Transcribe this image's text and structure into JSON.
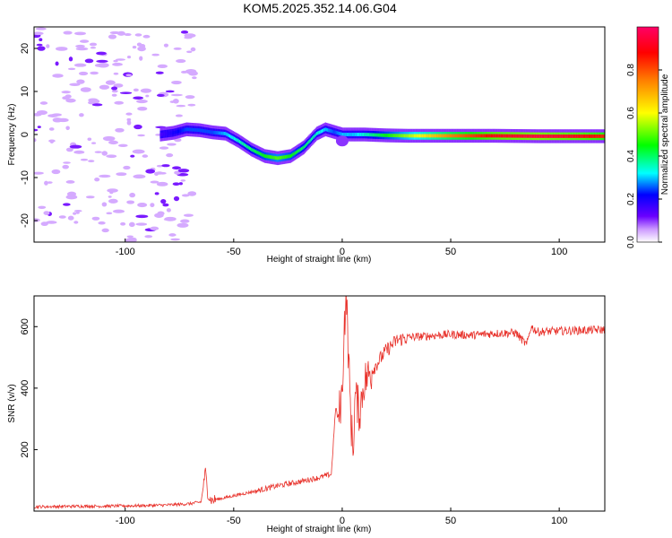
{
  "title": "KOM5.2025.352.14.06.G04",
  "chart_data": [
    {
      "type": "heatmap",
      "title": "KOM5.2025.352.14.06.G04",
      "xlabel": "Height of straight line (km)",
      "ylabel": "Frequency (Hz)",
      "xlim": [
        -142,
        121
      ],
      "ylim": [
        -25,
        25
      ],
      "xticks": [
        -100,
        -50,
        0,
        50,
        100
      ],
      "xtick_labels": [
        "-100",
        "-50",
        "0",
        "50",
        "100"
      ],
      "yticks": [
        20,
        10,
        0,
        -10,
        -20
      ],
      "ytick_labels": [
        "20",
        "10",
        "0",
        "-10",
        "-20"
      ],
      "colorbar": {
        "label": "Normalized spectral amplitude",
        "range": [
          0,
          1
        ],
        "ticks": [
          0.0,
          0.2,
          0.4,
          0.6,
          0.8
        ],
        "tick_labels": [
          "0.0",
          "0.2",
          "0.4",
          "0.6",
          "0.8"
        ]
      },
      "ridge": {
        "x": [
          -84,
          -78,
          -72,
          -66,
          -60,
          -54,
          -48,
          -42,
          -36,
          -30,
          -24,
          -18,
          -12,
          -8,
          -4,
          0,
          5,
          10,
          20,
          30,
          50,
          70,
          90,
          110,
          121
        ],
        "y": [
          0,
          0.4,
          1.2,
          1.0,
          0.5,
          0.2,
          -1.5,
          -3.5,
          -5.0,
          -5.5,
          -5.0,
          -3.0,
          0.2,
          1.2,
          0.6,
          0.0,
          0.0,
          0.0,
          -0.2,
          -0.3,
          -0.3,
          -0.3,
          -0.4,
          -0.4,
          -0.4
        ],
        "amplitude": [
          0.15,
          0.2,
          0.25,
          0.25,
          0.25,
          0.3,
          0.35,
          0.4,
          0.45,
          0.5,
          0.45,
          0.4,
          0.35,
          0.3,
          0.25,
          0.3,
          0.3,
          0.35,
          0.45,
          0.55,
          0.75,
          0.9,
          0.95,
          0.9,
          0.85
        ]
      },
      "noise_region_x": [
        -142,
        -68
      ]
    },
    {
      "type": "line",
      "xlabel": "Height of straight line (km)",
      "ylabel": "SNR (v/v)",
      "xlim": [
        -142,
        121
      ],
      "ylim": [
        0,
        700
      ],
      "xticks": [
        -100,
        -50,
        0,
        50,
        100
      ],
      "xtick_labels": [
        "-100",
        "-50",
        "0",
        "50",
        "100"
      ],
      "yticks": [
        200,
        400,
        600
      ],
      "ytick_labels": [
        "200",
        "400",
        "600"
      ],
      "series": [
        {
          "name": "SNR",
          "color": "#e8312a",
          "x": [
            -142,
            -130,
            -120,
            -110,
            -100,
            -90,
            -80,
            -70,
            -65,
            -63,
            -62,
            -61,
            -60,
            -55,
            -50,
            -40,
            -30,
            -20,
            -10,
            -5,
            -3,
            -2,
            0,
            1,
            2,
            3,
            4,
            5,
            6,
            8,
            10,
            12,
            15,
            20,
            25,
            30,
            40,
            50,
            60,
            70,
            80,
            85,
            87,
            90,
            100,
            110,
            121
          ],
          "y": [
            14,
            15,
            16,
            16,
            17,
            18,
            20,
            24,
            30,
            130,
            60,
            40,
            35,
            42,
            50,
            65,
            82,
            95,
            110,
            120,
            340,
            300,
            380,
            620,
            690,
            480,
            300,
            200,
            380,
            320,
            420,
            440,
            470,
            520,
            555,
            565,
            570,
            575,
            572,
            578,
            580,
            540,
            600,
            583,
            586,
            588,
            590
          ]
        }
      ]
    }
  ]
}
